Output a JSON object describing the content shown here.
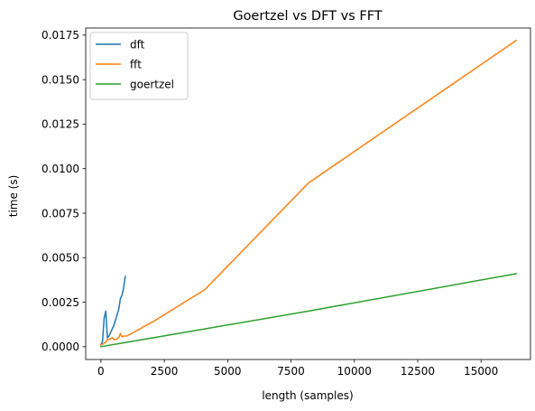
{
  "chart_data": {
    "type": "line",
    "title": "Goertzel vs DFT vs FFT",
    "xlabel": "length (samples)",
    "ylabel": "time (s)",
    "xlim": [
      -600,
      16950
    ],
    "ylim": [
      -0.00072,
      0.0179
    ],
    "xticks": [
      0,
      2500,
      5000,
      7500,
      10000,
      12500,
      15000
    ],
    "xtick_labels": [
      "0",
      "2500",
      "5000",
      "7500",
      "10000",
      "12500",
      "15000"
    ],
    "yticks": [
      0.0,
      0.0025,
      0.005,
      0.0075,
      0.01,
      0.0125,
      0.015,
      0.0175
    ],
    "ytick_labels": [
      "0.0000",
      "0.0025",
      "0.0050",
      "0.0075",
      "0.0100",
      "0.0125",
      "0.0150",
      "0.0175"
    ],
    "grid": false,
    "legend_position": "top-left",
    "series": [
      {
        "name": "dft",
        "color": "#1f77b4",
        "x": [
          0,
          64,
          128,
          192,
          256,
          320,
          384,
          448,
          512,
          576,
          640,
          704,
          768,
          832,
          896,
          960
        ],
        "y": [
          0.0001,
          0.0003,
          0.0016,
          0.002,
          0.0005,
          0.0006,
          0.0008,
          0.001,
          0.0012,
          0.0015,
          0.0018,
          0.0021,
          0.0027,
          0.0029,
          0.0033,
          0.00395
        ]
      },
      {
        "name": "fft",
        "color": "#ff7f0e",
        "x": [
          0,
          128,
          192,
          256,
          320,
          384,
          448,
          512,
          576,
          640,
          704,
          768,
          832,
          896,
          960,
          1024,
          2048,
          4096,
          8192,
          16384
        ],
        "y": [
          0.0001,
          0.0002,
          0.00025,
          0.0004,
          0.0004,
          0.00045,
          0.0005,
          0.0004,
          0.0004,
          0.00045,
          0.0005,
          0.00075,
          0.00055,
          0.0006,
          0.0006,
          0.0006,
          0.0014,
          0.0032,
          0.0092,
          0.0172
        ]
      },
      {
        "name": "goertzel",
        "color": "#2ca02c",
        "x": [
          0,
          1024,
          2048,
          4096,
          8192,
          16384
        ],
        "y": [
          0.0,
          0.00025,
          0.0005,
          0.001,
          0.002,
          0.0041
        ]
      }
    ]
  }
}
